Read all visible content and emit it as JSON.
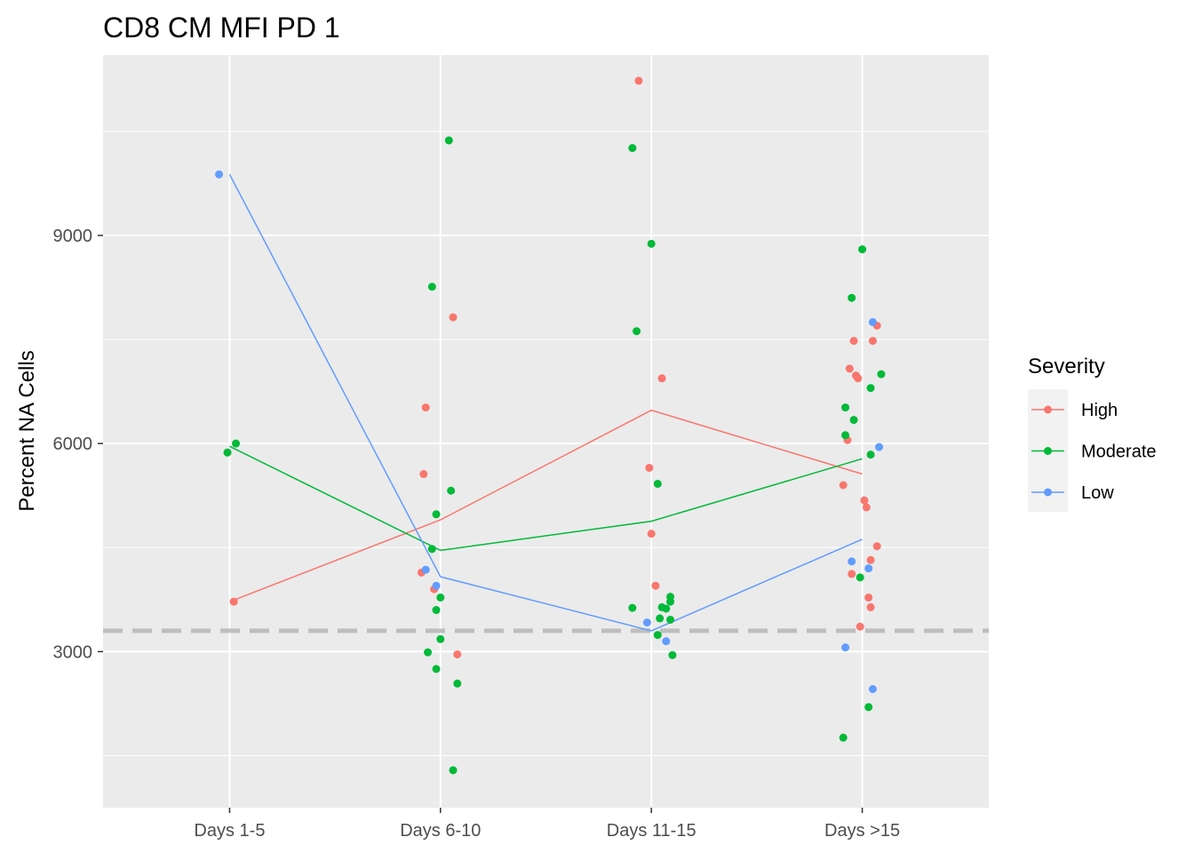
{
  "chart_data": {
    "type": "scatter",
    "title": "CD8 CM MFI PD 1",
    "xlabel": "",
    "ylabel": "Percent NA Cells",
    "categories": [
      "Days 1-5",
      "Days 6-10",
      "Days 11-15",
      "Days >15"
    ],
    "ylim": [
      750,
      11600
    ],
    "yticks": [
      3000,
      6000,
      9000
    ],
    "grid": true,
    "reference_line": {
      "y": 3300,
      "style": "dashed",
      "color": "#bebebe"
    },
    "legend": {
      "title": "Severity",
      "position": "right"
    },
    "series": [
      {
        "name": "High",
        "color": "#f8766d",
        "mean_line": [
          3720,
          4900,
          6480,
          5560
        ],
        "points": [
          {
            "x": "Days 1-5",
            "dx": 0.02,
            "y": 3720
          },
          {
            "x": "Days 6-10",
            "dx": 0.06,
            "y": 7820
          },
          {
            "x": "Days 6-10",
            "dx": -0.07,
            "y": 6520
          },
          {
            "x": "Days 6-10",
            "dx": -0.08,
            "y": 5560
          },
          {
            "x": "Days 6-10",
            "dx": -0.09,
            "y": 4140
          },
          {
            "x": "Days 6-10",
            "dx": -0.03,
            "y": 3900
          },
          {
            "x": "Days 6-10",
            "dx": 0.08,
            "y": 2960
          },
          {
            "x": "Days 11-15",
            "dx": -0.06,
            "y": 11230
          },
          {
            "x": "Days 11-15",
            "dx": 0.05,
            "y": 6940
          },
          {
            "x": "Days 11-15",
            "dx": -0.01,
            "y": 5650
          },
          {
            "x": "Days 11-15",
            "dx": 0.0,
            "y": 4700
          },
          {
            "x": "Days 11-15",
            "dx": 0.02,
            "y": 3950
          },
          {
            "x": "Days >15",
            "dx": 0.07,
            "y": 7700
          },
          {
            "x": "Days >15",
            "dx": -0.04,
            "y": 7480
          },
          {
            "x": "Days >15",
            "dx": 0.05,
            "y": 7480
          },
          {
            "x": "Days >15",
            "dx": -0.06,
            "y": 7080
          },
          {
            "x": "Days >15",
            "dx": -0.02,
            "y": 6940
          },
          {
            "x": "Days >15",
            "dx": -0.03,
            "y": 6980
          },
          {
            "x": "Days >15",
            "dx": -0.07,
            "y": 6050
          },
          {
            "x": "Days >15",
            "dx": -0.09,
            "y": 5400
          },
          {
            "x": "Days >15",
            "dx": 0.01,
            "y": 5180
          },
          {
            "x": "Days >15",
            "dx": 0.02,
            "y": 5080
          },
          {
            "x": "Days >15",
            "dx": 0.07,
            "y": 4520
          },
          {
            "x": "Days >15",
            "dx": 0.04,
            "y": 4320
          },
          {
            "x": "Days >15",
            "dx": -0.05,
            "y": 4120
          },
          {
            "x": "Days >15",
            "dx": 0.03,
            "y": 3780
          },
          {
            "x": "Days >15",
            "dx": 0.04,
            "y": 3640
          },
          {
            "x": "Days >15",
            "dx": -0.01,
            "y": 3360
          }
        ]
      },
      {
        "name": "Moderate",
        "color": "#00ba38",
        "mean_line": [
          5960,
          4460,
          4880,
          5780
        ],
        "points": [
          {
            "x": "Days 1-5",
            "dx": -0.01,
            "y": 5870
          },
          {
            "x": "Days 1-5",
            "dx": 0.03,
            "y": 6000
          },
          {
            "x": "Days 6-10",
            "dx": 0.04,
            "y": 10370
          },
          {
            "x": "Days 6-10",
            "dx": -0.04,
            "y": 8260
          },
          {
            "x": "Days 6-10",
            "dx": 0.05,
            "y": 5320
          },
          {
            "x": "Days 6-10",
            "dx": -0.02,
            "y": 4980
          },
          {
            "x": "Days 6-10",
            "dx": -0.04,
            "y": 4480
          },
          {
            "x": "Days 6-10",
            "dx": 0.0,
            "y": 3780
          },
          {
            "x": "Days 6-10",
            "dx": -0.02,
            "y": 3600
          },
          {
            "x": "Days 6-10",
            "dx": 0.0,
            "y": 3180
          },
          {
            "x": "Days 6-10",
            "dx": -0.06,
            "y": 2990
          },
          {
            "x": "Days 6-10",
            "dx": -0.02,
            "y": 2750
          },
          {
            "x": "Days 6-10",
            "dx": 0.08,
            "y": 2540
          },
          {
            "x": "Days 6-10",
            "dx": 0.06,
            "y": 1290
          },
          {
            "x": "Days 11-15",
            "dx": -0.09,
            "y": 10260
          },
          {
            "x": "Days 11-15",
            "dx": 0.0,
            "y": 8880
          },
          {
            "x": "Days 11-15",
            "dx": -0.07,
            "y": 7620
          },
          {
            "x": "Days 11-15",
            "dx": 0.03,
            "y": 5420
          },
          {
            "x": "Days 11-15",
            "dx": -0.09,
            "y": 3630
          },
          {
            "x": "Days 11-15",
            "dx": 0.05,
            "y": 3640
          },
          {
            "x": "Days 11-15",
            "dx": 0.07,
            "y": 3620
          },
          {
            "x": "Days 11-15",
            "dx": 0.09,
            "y": 3790
          },
          {
            "x": "Days 11-15",
            "dx": 0.09,
            "y": 3720
          },
          {
            "x": "Days 11-15",
            "dx": 0.04,
            "y": 3480
          },
          {
            "x": "Days 11-15",
            "dx": 0.09,
            "y": 3460
          },
          {
            "x": "Days 11-15",
            "dx": 0.03,
            "y": 3240
          },
          {
            "x": "Days 11-15",
            "dx": 0.1,
            "y": 2950
          },
          {
            "x": "Days >15",
            "dx": 0.0,
            "y": 8800
          },
          {
            "x": "Days >15",
            "dx": -0.05,
            "y": 8100
          },
          {
            "x": "Days >15",
            "dx": 0.09,
            "y": 7000
          },
          {
            "x": "Days >15",
            "dx": 0.04,
            "y": 6800
          },
          {
            "x": "Days >15",
            "dx": -0.08,
            "y": 6520
          },
          {
            "x": "Days >15",
            "dx": -0.04,
            "y": 6340
          },
          {
            "x": "Days >15",
            "dx": -0.08,
            "y": 6120
          },
          {
            "x": "Days >15",
            "dx": 0.04,
            "y": 5840
          },
          {
            "x": "Days >15",
            "dx": -0.01,
            "y": 4070
          },
          {
            "x": "Days >15",
            "dx": 0.03,
            "y": 2200
          },
          {
            "x": "Days >15",
            "dx": -0.09,
            "y": 1760
          }
        ]
      },
      {
        "name": "Low",
        "color": "#619cff",
        "mean_line": [
          9880,
          4080,
          3300,
          4620
        ],
        "points": [
          {
            "x": "Days 1-5",
            "dx": -0.05,
            "y": 9880
          },
          {
            "x": "Days 6-10",
            "dx": -0.07,
            "y": 4180
          },
          {
            "x": "Days 6-10",
            "dx": -0.02,
            "y": 3950
          },
          {
            "x": "Days 11-15",
            "dx": -0.02,
            "y": 3420
          },
          {
            "x": "Days 11-15",
            "dx": 0.07,
            "y": 3150
          },
          {
            "x": "Days >15",
            "dx": 0.05,
            "y": 7750
          },
          {
            "x": "Days >15",
            "dx": 0.08,
            "y": 5950
          },
          {
            "x": "Days >15",
            "dx": -0.05,
            "y": 4300
          },
          {
            "x": "Days >15",
            "dx": 0.03,
            "y": 4200
          },
          {
            "x": "Days >15",
            "dx": -0.08,
            "y": 3060
          },
          {
            "x": "Days >15",
            "dx": 0.05,
            "y": 2460
          }
        ]
      }
    ]
  }
}
